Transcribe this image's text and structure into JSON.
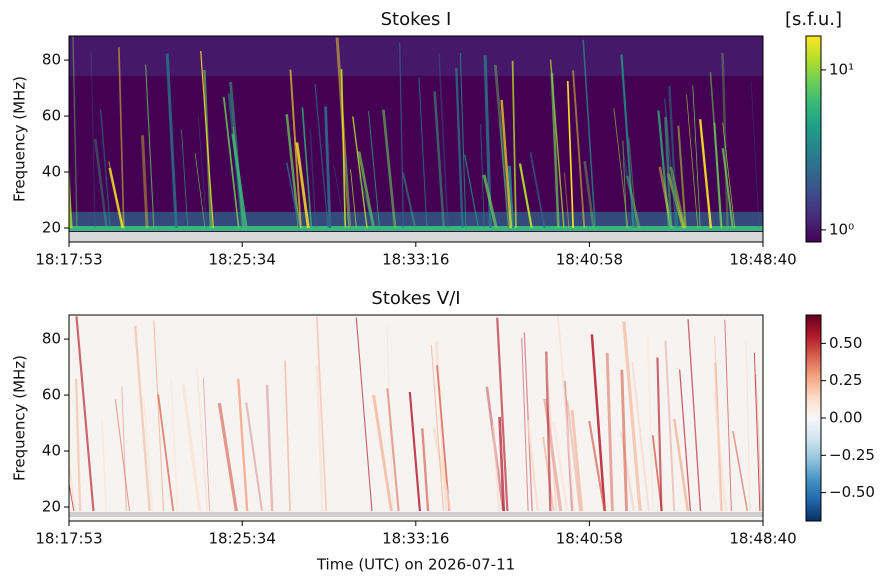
{
  "chart_data": [
    {
      "type": "heatmap",
      "title": "Stokes I",
      "ylabel": "Frequency (MHz)",
      "xlim": [
        "18:17:53",
        "18:48:40"
      ],
      "xticks": [
        "18:17:53",
        "18:25:34",
        "18:33:16",
        "18:40:58",
        "18:48:40"
      ],
      "ylim": [
        15,
        88.6
      ],
      "yticks": [
        20,
        40,
        60,
        80
      ],
      "colorbar": {
        "label": "[s.f.u.]",
        "log": true,
        "lim": [
          0.84,
          16.3
        ],
        "ticks": [
          {
            "value": 1,
            "label": "10⁰"
          },
          {
            "value": 10,
            "label": "10¹"
          }
        ],
        "colors": [
          "#440154",
          "#482878",
          "#3e4989",
          "#31688e",
          "#26828e",
          "#1f9e89",
          "#35b779",
          "#6ece58",
          "#b5de2b",
          "#fde725"
        ]
      }
    },
    {
      "type": "heatmap",
      "title": "Stokes V/I",
      "ylabel": "Frequency (MHz)",
      "xlabel": "Time (UTC) on 2026-07-11",
      "xlim": [
        "18:17:53",
        "18:48:40"
      ],
      "xticks": [
        "18:17:53",
        "18:25:34",
        "18:33:16",
        "18:40:58",
        "18:48:40"
      ],
      "ylim": [
        15,
        88.6
      ],
      "yticks": [
        20,
        40,
        60,
        80
      ],
      "colorbar": {
        "log": false,
        "lim": [
          -0.69,
          0.69
        ],
        "ticks": [
          {
            "value": -0.5,
            "label": "−0.50"
          },
          {
            "value": -0.25,
            "label": "−0.25"
          },
          {
            "value": 0,
            "label": "0.00"
          },
          {
            "value": 0.25,
            "label": "0.25"
          },
          {
            "value": 0.5,
            "label": "0.50"
          }
        ],
        "colors": [
          "#053061",
          "#2166ac",
          "#4393c3",
          "#92c5de",
          "#d1e5f0",
          "#f7f7f7",
          "#fddbc7",
          "#f4a582",
          "#d6604d",
          "#b2182b",
          "#67001f"
        ]
      }
    }
  ]
}
